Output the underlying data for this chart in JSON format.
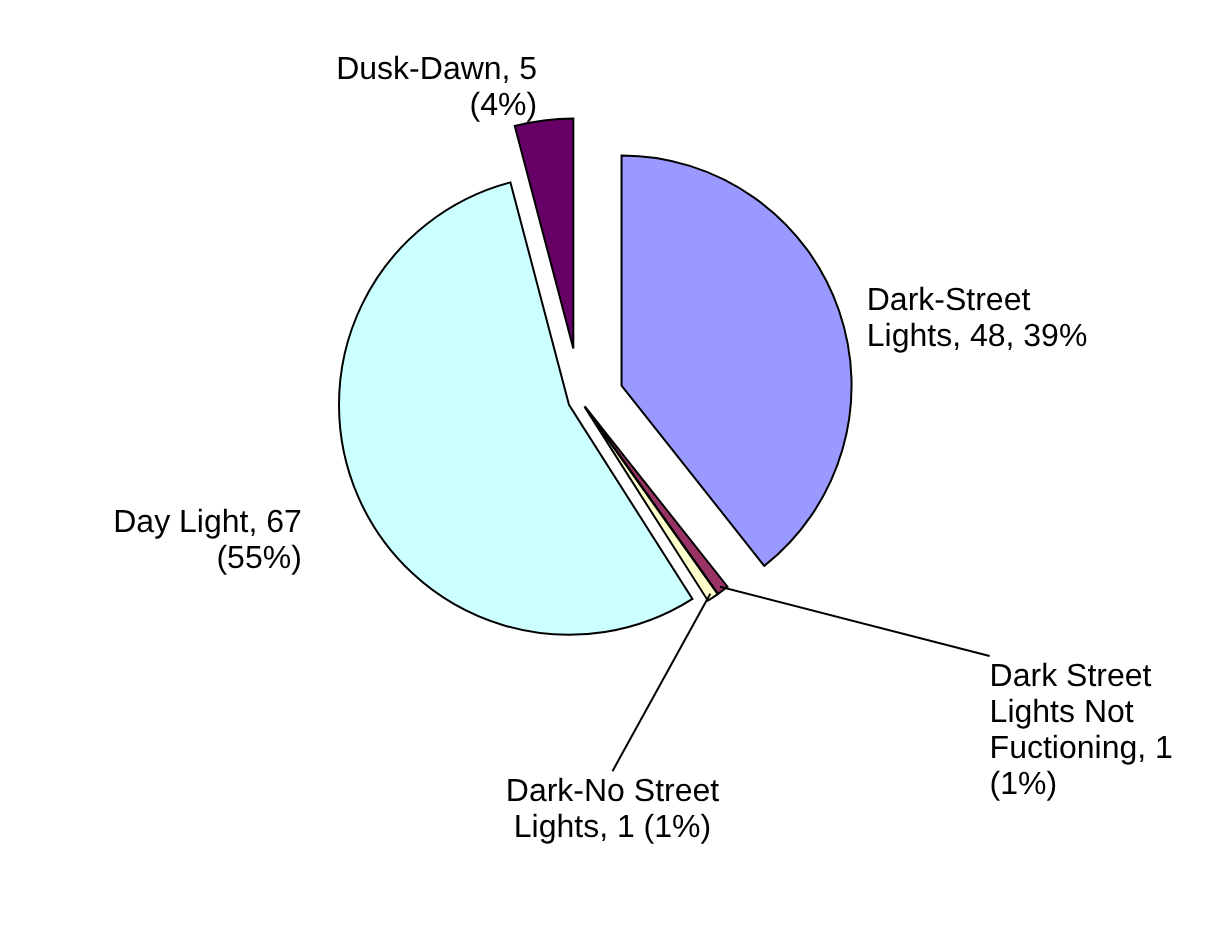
{
  "chart_data": {
    "type": "pie",
    "categories": [
      "Dark-Street Lights",
      "Dark Street Lights Not Fuctioning",
      "Dark-No Street Lights",
      "Day Light",
      "Dusk-Dawn"
    ],
    "values": [
      48,
      1,
      1,
      67,
      5
    ],
    "colors": [
      "#9999ff",
      "#993366",
      "#ffffcc",
      "#ccffff",
      "#660066"
    ],
    "value_labels": [
      "48, 39%",
      "1 (1%)",
      "1 (1%)",
      "67 (55%)",
      "5 (4%)"
    ]
  }
}
